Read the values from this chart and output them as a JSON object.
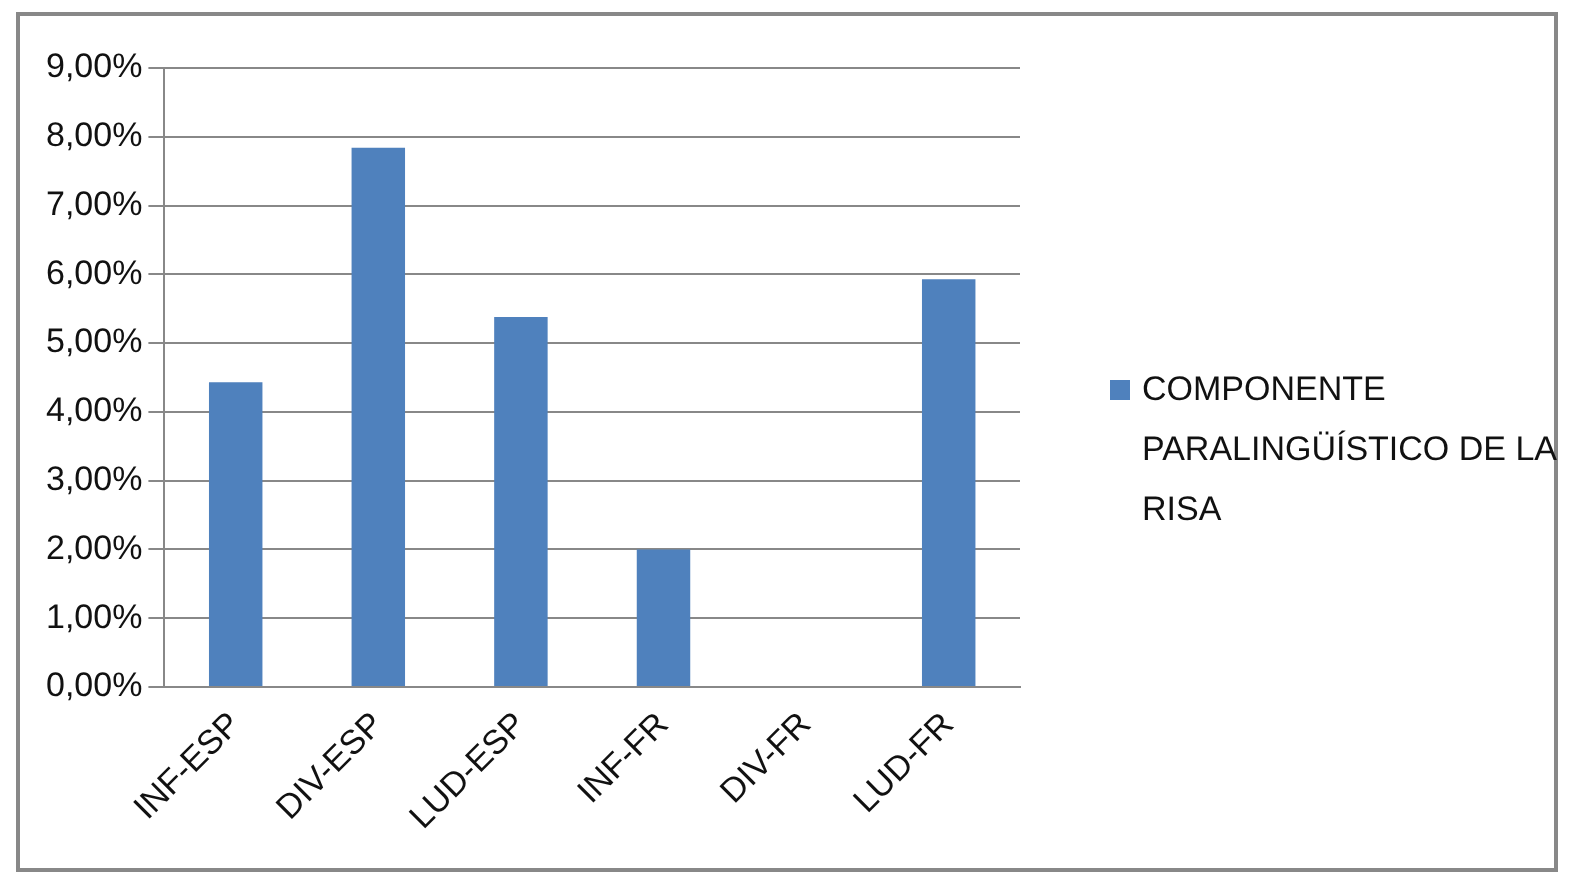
{
  "chart_data": {
    "type": "bar",
    "categories": [
      "INF-ESP",
      "DIV-ESP",
      "LUD-ESP",
      "INF-FR",
      "DIV-FR",
      "LUD-FR"
    ],
    "series": [
      {
        "name": "COMPONENTE PARALINGÜÍSTICO DE LA RISA",
        "color": "#4f81bd",
        "values": [
          4.43,
          7.84,
          5.38,
          2.0,
          0,
          5.93
        ]
      }
    ],
    "ylim": [
      0,
      9
    ],
    "yticks": [
      {
        "value": 0,
        "label": "0,00%"
      },
      {
        "value": 1,
        "label": "1,00%"
      },
      {
        "value": 2,
        "label": "2,00%"
      },
      {
        "value": 3,
        "label": "3,00%"
      },
      {
        "value": 4,
        "label": "4,00%"
      },
      {
        "value": 5,
        "label": "5,00%"
      },
      {
        "value": 6,
        "label": "6,00%"
      },
      {
        "value": 7,
        "label": "7,00%"
      },
      {
        "value": 8,
        "label": "8,00%"
      },
      {
        "value": 9,
        "label": "9,00%"
      }
    ],
    "grid": "y",
    "legend": "right"
  }
}
